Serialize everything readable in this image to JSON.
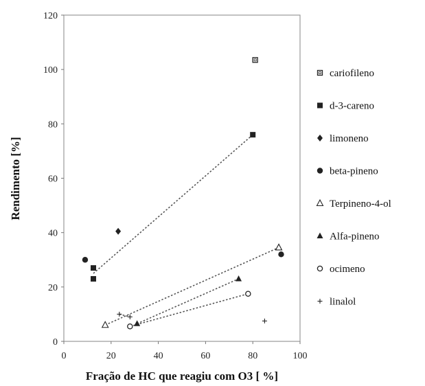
{
  "chart_data": {
    "type": "scatter",
    "xlabel": "Fração de HC que reagiu com O3 [ %]",
    "ylabel": "Rendimento [%]",
    "xlim": [
      0,
      100
    ],
    "ylim": [
      0,
      120
    ],
    "x_ticks": [
      "0",
      "20",
      "40",
      "60",
      "80",
      "100"
    ],
    "y_ticks": [
      "0",
      "20",
      "40",
      "60",
      "80",
      "100",
      "120"
    ],
    "grid": false,
    "legend_position": "right",
    "series": [
      {
        "name": "cariofileno",
        "marker": "square-open",
        "points": [
          {
            "x": 81,
            "y": 103.5
          }
        ]
      },
      {
        "name": "d-3-careno",
        "marker": "square",
        "points": [
          {
            "x": 12.5,
            "y": 27
          },
          {
            "x": 12.5,
            "y": 23
          },
          {
            "x": 80,
            "y": 76
          }
        ]
      },
      {
        "name": "limoneno",
        "marker": "diamond",
        "points": [
          {
            "x": 23,
            "y": 40.5
          }
        ]
      },
      {
        "name": "beta-pineno",
        "marker": "circle",
        "points": [
          {
            "x": 9,
            "y": 30
          },
          {
            "x": 92,
            "y": 32
          }
        ]
      },
      {
        "name": "Terpineno-4-ol",
        "marker": "triangle-open",
        "points": [
          {
            "x": 17.5,
            "y": 6
          },
          {
            "x": 91,
            "y": 34.5
          }
        ]
      },
      {
        "name": "Alfa-pineno",
        "marker": "triangle",
        "points": [
          {
            "x": 31,
            "y": 6.5
          },
          {
            "x": 74,
            "y": 23
          }
        ]
      },
      {
        "name": "ocimeno",
        "marker": "circle-open",
        "points": [
          {
            "x": 28,
            "y": 5.5
          },
          {
            "x": 78,
            "y": 17.5
          }
        ]
      },
      {
        "name": "linalol",
        "marker": "plus",
        "points": [
          {
            "x": 23.5,
            "y": 10
          },
          {
            "x": 28,
            "y": 9
          },
          {
            "x": 85,
            "y": 7.5
          }
        ]
      }
    ],
    "trend_lines": [
      {
        "x": [
          12.5,
          80
        ],
        "y": [
          25,
          76
        ]
      },
      {
        "x": [
          17.5,
          91
        ],
        "y": [
          6,
          34.5
        ]
      },
      {
        "x": [
          31,
          74
        ],
        "y": [
          6.5,
          23
        ]
      },
      {
        "x": [
          28,
          78
        ],
        "y": [
          5.5,
          17.5
        ]
      },
      {
        "x": [
          23.5,
          28
        ],
        "y": [
          10,
          9
        ]
      }
    ]
  }
}
